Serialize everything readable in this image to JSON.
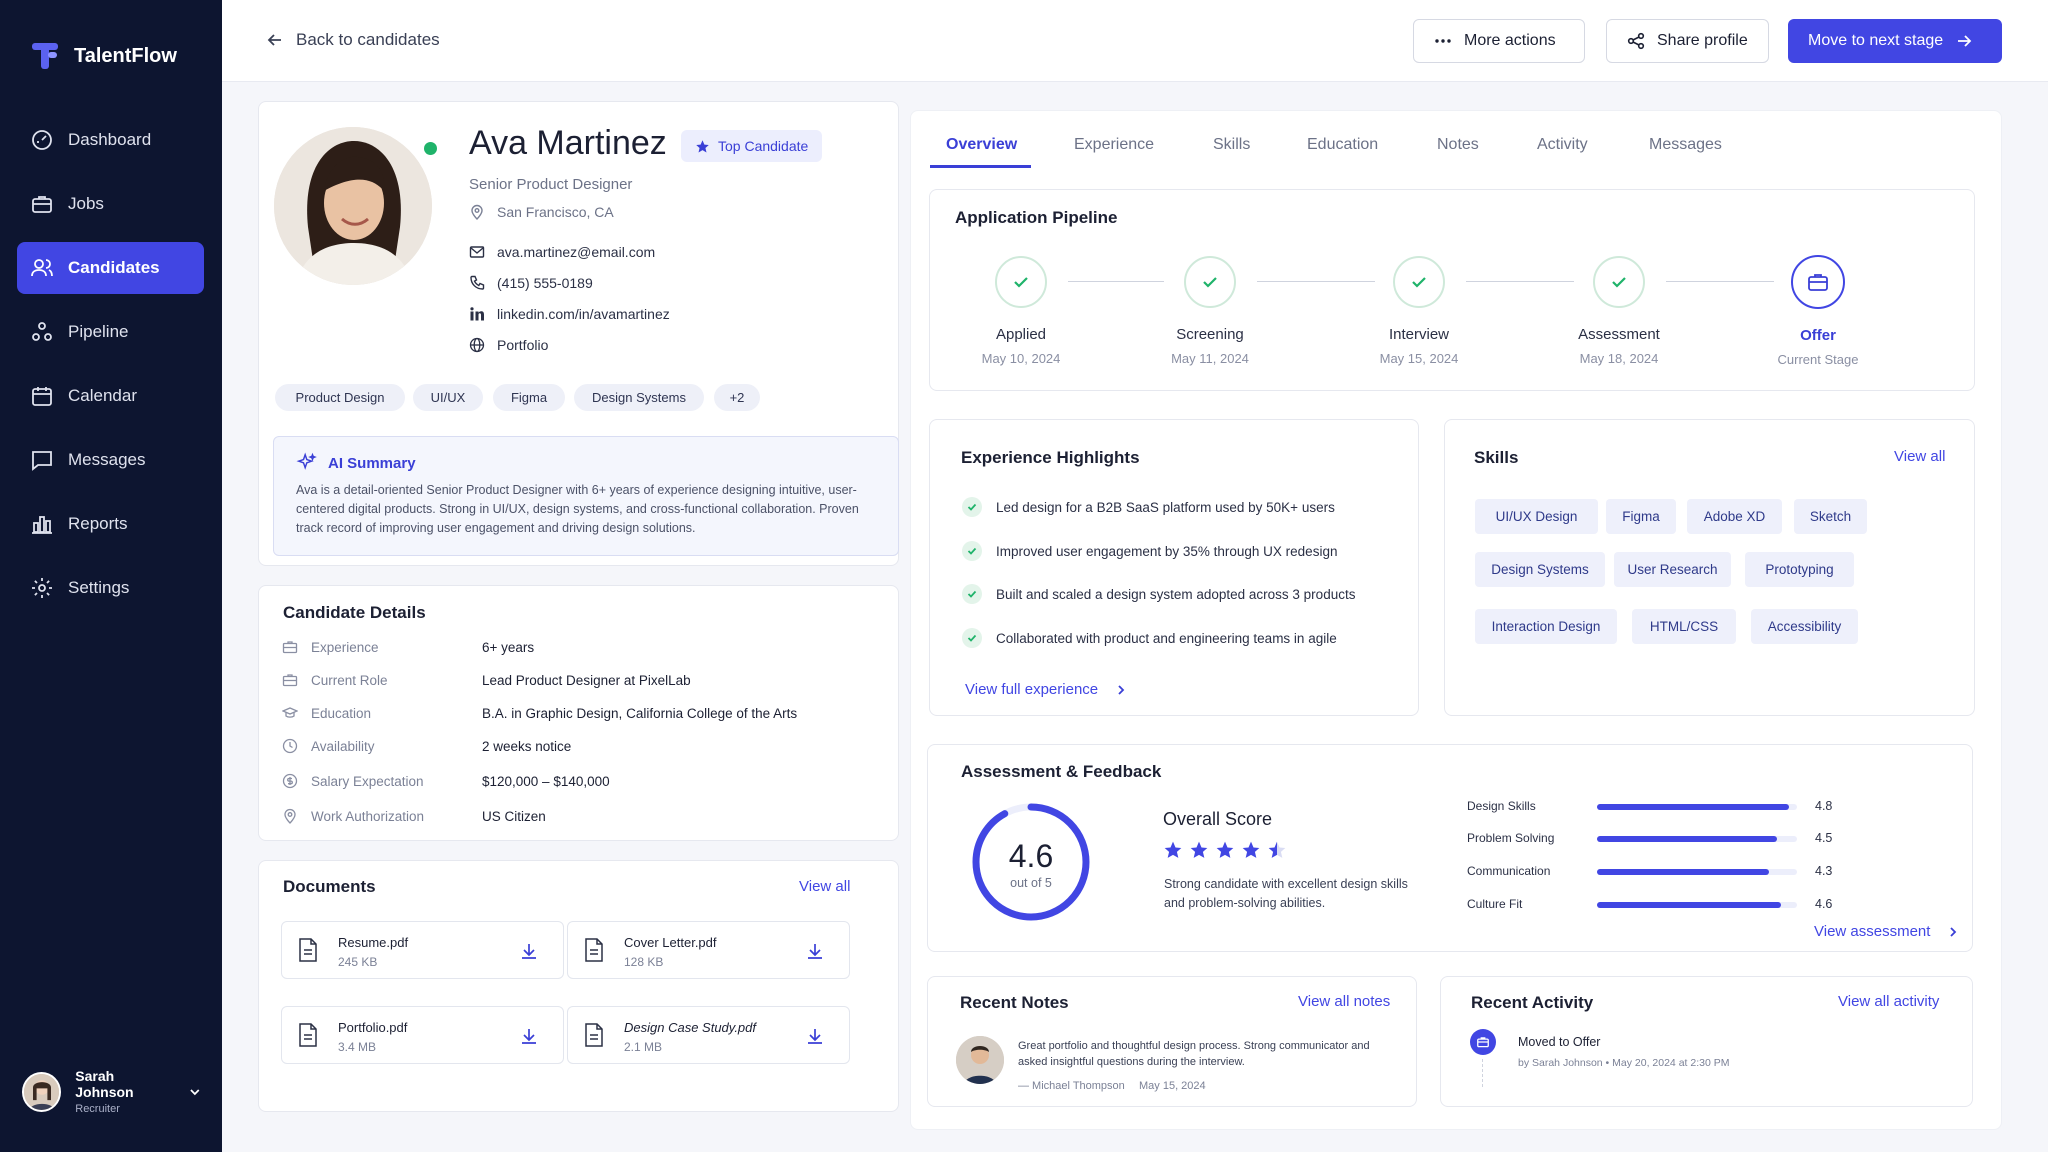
{
  "app": {
    "name": "TalentFlow"
  },
  "sidebar": {
    "items": [
      {
        "label": "Dashboard",
        "icon": "dashboard-icon"
      },
      {
        "label": "Jobs",
        "icon": "briefcase-icon"
      },
      {
        "label": "Candidates",
        "icon": "users-icon",
        "active": true
      },
      {
        "label": "Pipeline",
        "icon": "pipeline-icon"
      },
      {
        "label": "Calendar",
        "icon": "calendar-icon"
      },
      {
        "label": "Messages",
        "icon": "message-icon"
      },
      {
        "label": "Reports",
        "icon": "bar-chart-icon"
      },
      {
        "label": "Settings",
        "icon": "gear-icon"
      }
    ],
    "user": {
      "name": "Sarah Johnson",
      "role": "Recruiter"
    }
  },
  "topbar": {
    "back_label": "Back to candidates",
    "more_actions": "More actions",
    "share_profile": "Share profile",
    "next_stage": "Move to next stage"
  },
  "profile": {
    "name": "Ava Martinez",
    "badge": "Top Candidate",
    "role": "Senior Product Designer",
    "location": "San Francisco, CA",
    "email": "ava.martinez@email.com",
    "phone": "(415) 555-0189",
    "linkedin": "linkedin.com/in/avamartinez",
    "portfolio": "Portfolio",
    "tags": [
      "Product Design",
      "UI/UX",
      "Figma",
      "Design Systems",
      "+2"
    ],
    "ai_summary_title": "AI Summary",
    "ai_summary_text": "Ava is a detail-oriented Senior Product Designer with 6+ years of experience designing intuitive, user-centered digital products. Strong in UI/UX, design systems, and cross-functional collaboration. Proven track record of improving user engagement and driving design solutions."
  },
  "details": {
    "title": "Candidate Details",
    "rows": [
      {
        "label": "Experience",
        "value": "6+ years"
      },
      {
        "label": "Current Role",
        "value": "Lead Product Designer at PixelLab"
      },
      {
        "label": "Education",
        "value": "B.A. in Graphic Design, California College of the Arts"
      },
      {
        "label": "Availability",
        "value": "2 weeks notice"
      },
      {
        "label": "Salary Expectation",
        "value": "$120,000 – $140,000"
      },
      {
        "label": "Work Authorization",
        "value": "US Citizen"
      }
    ]
  },
  "documents": {
    "title": "Documents",
    "view_all": "View all",
    "items": [
      {
        "name": "Resume.pdf",
        "size": "245 KB"
      },
      {
        "name": "Cover Letter.pdf",
        "size": "128 KB"
      },
      {
        "name": "Portfolio.pdf",
        "size": "3.4 MB"
      },
      {
        "name": "Design Case Study.pdf",
        "size": "2.1 MB"
      }
    ]
  },
  "tabs": [
    "Overview",
    "Experience",
    "Skills",
    "Education",
    "Notes",
    "Activity",
    "Messages"
  ],
  "pipeline": {
    "title": "Application Pipeline",
    "steps": [
      {
        "name": "Applied",
        "date": "May 10, 2024"
      },
      {
        "name": "Screening",
        "date": "May 11, 2024"
      },
      {
        "name": "Interview",
        "date": "May 15, 2024"
      },
      {
        "name": "Assessment",
        "date": "May 18, 2024"
      },
      {
        "name": "Offer",
        "date": "Current Stage"
      }
    ]
  },
  "highlights": {
    "title": "Experience Highlights",
    "items": [
      "Led design for a B2B SaaS platform used by 50K+ users",
      "Improved user engagement by 35% through UX redesign",
      "Built and scaled a design system adopted across 3 products",
      "Collaborated with product and engineering teams in agile"
    ],
    "link": "View full experience"
  },
  "skills": {
    "title": "Skills",
    "view_all": "View all",
    "items": [
      "UI/UX Design",
      "Figma",
      "Adobe XD",
      "Sketch",
      "Design Systems",
      "User Research",
      "Prototyping",
      "Interaction Design",
      "HTML/CSS",
      "Accessibility"
    ]
  },
  "assessment": {
    "title": "Assessment & Feedback",
    "score": "4.6",
    "score_sub": "out of 5",
    "score_value": 4.6,
    "overall_title": "Overall Score",
    "stars": 4.5,
    "overall_text": "Strong candidate with excellent design skills and problem-solving abilities.",
    "bars": [
      {
        "label": "Design Skills",
        "value": "4.8",
        "num": 4.8
      },
      {
        "label": "Problem Solving",
        "value": "4.5",
        "num": 4.5
      },
      {
        "label": "Communication",
        "value": "4.3",
        "num": 4.3
      },
      {
        "label": "Culture Fit",
        "value": "4.6",
        "num": 4.6
      }
    ],
    "link": "View assessment"
  },
  "notes": {
    "title": "Recent Notes",
    "view_all": "View all notes",
    "text": "Great portfolio and thoughtful design process. Strong communicator and asked insightful questions during the interview.",
    "author": "— Michael Thompson",
    "date": "May 15, 2024"
  },
  "activity": {
    "title": "Recent Activity",
    "view_all": "View all activity",
    "event": "Moved to Offer",
    "meta": "by Sarah Johnson • May 20, 2024 at 2:30 PM"
  },
  "colors": {
    "primary": "#4146e3",
    "sidebar": "#0d1530",
    "success": "#1fb36a"
  }
}
